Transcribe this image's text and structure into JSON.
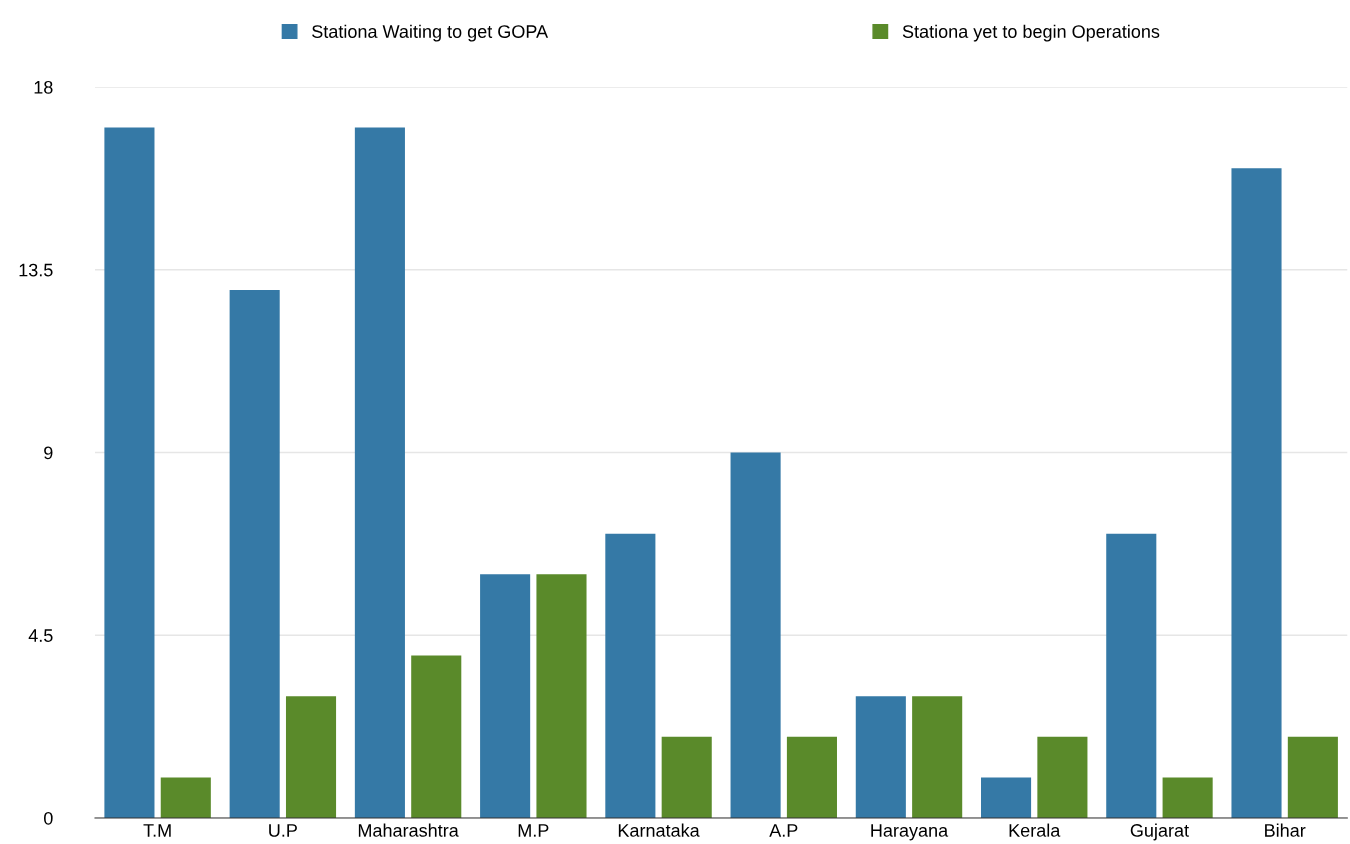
{
  "chart_data": {
    "type": "bar",
    "categories": [
      "T.M",
      "U.P",
      "Maharashtra",
      "M.P",
      "Karnataka",
      "A.P",
      "Harayana",
      "Kerala",
      "Gujarat",
      "Bihar"
    ],
    "series": [
      {
        "name": "Stationa Waiting to get GOPA",
        "color": "#3579a6",
        "values": [
          17,
          13,
          17,
          6,
          7,
          9,
          3,
          1,
          7,
          16
        ]
      },
      {
        "name": "Stationa yet to begin Operations",
        "color": "#5a8a2a",
        "values": [
          1,
          3,
          4,
          6,
          2,
          2,
          3,
          2,
          1,
          2
        ]
      }
    ],
    "ylim": [
      0,
      18
    ],
    "yticks": [
      0,
      4.5,
      9,
      13.5,
      18
    ],
    "grid": "y",
    "legend": "top"
  }
}
